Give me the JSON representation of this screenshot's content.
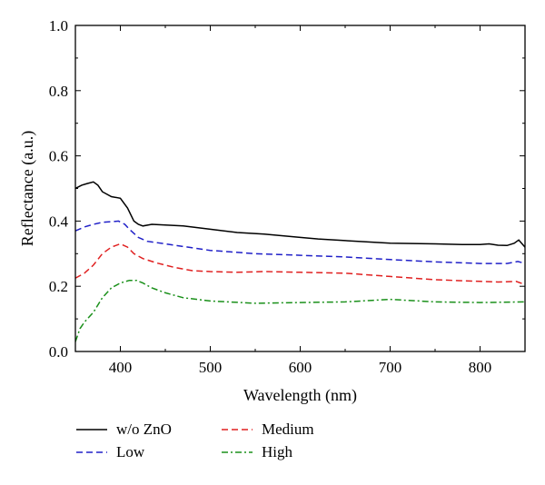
{
  "chart_data": {
    "type": "line",
    "xlabel": "Wavelength (nm)",
    "ylabel": "Reflectance (a.u.)",
    "xlim": [
      350,
      850
    ],
    "ylim": [
      0.0,
      1.0
    ],
    "xticks": [
      400,
      500,
      600,
      700,
      800
    ],
    "yticks": [
      0.0,
      0.2,
      0.4,
      0.6,
      0.8,
      1.0
    ],
    "ytick_labels": [
      "0.0",
      "0.2",
      "0.4",
      "0.6",
      "0.8",
      "1.0"
    ],
    "grid": false,
    "legend_position": "bottom",
    "series": [
      {
        "name": "w/o ZnO",
        "color": "#000000",
        "dash": "solid",
        "points": [
          [
            350,
            0.5
          ],
          [
            357,
            0.51
          ],
          [
            363,
            0.515
          ],
          [
            370,
            0.52
          ],
          [
            375,
            0.51
          ],
          [
            380,
            0.49
          ],
          [
            390,
            0.475
          ],
          [
            400,
            0.47
          ],
          [
            408,
            0.44
          ],
          [
            415,
            0.4
          ],
          [
            420,
            0.39
          ],
          [
            425,
            0.385
          ],
          [
            435,
            0.39
          ],
          [
            450,
            0.388
          ],
          [
            470,
            0.385
          ],
          [
            500,
            0.375
          ],
          [
            530,
            0.365
          ],
          [
            560,
            0.36
          ],
          [
            600,
            0.35
          ],
          [
            620,
            0.345
          ],
          [
            650,
            0.34
          ],
          [
            700,
            0.332
          ],
          [
            750,
            0.33
          ],
          [
            780,
            0.328
          ],
          [
            800,
            0.328
          ],
          [
            810,
            0.33
          ],
          [
            820,
            0.326
          ],
          [
            830,
            0.325
          ],
          [
            838,
            0.332
          ],
          [
            843,
            0.342
          ],
          [
            850,
            0.32
          ]
        ]
      },
      {
        "name": "Low",
        "color": "#2020c8",
        "dash": "dashed",
        "points": [
          [
            350,
            0.37
          ],
          [
            360,
            0.382
          ],
          [
            370,
            0.39
          ],
          [
            380,
            0.396
          ],
          [
            390,
            0.398
          ],
          [
            398,
            0.4
          ],
          [
            405,
            0.39
          ],
          [
            410,
            0.375
          ],
          [
            420,
            0.35
          ],
          [
            430,
            0.338
          ],
          [
            450,
            0.33
          ],
          [
            470,
            0.322
          ],
          [
            500,
            0.31
          ],
          [
            550,
            0.3
          ],
          [
            600,
            0.295
          ],
          [
            650,
            0.29
          ],
          [
            700,
            0.282
          ],
          [
            750,
            0.275
          ],
          [
            800,
            0.27
          ],
          [
            830,
            0.27
          ],
          [
            842,
            0.276
          ],
          [
            850,
            0.27
          ]
        ]
      },
      {
        "name": "Medium",
        "color": "#e02020",
        "dash": "dashed",
        "points": [
          [
            350,
            0.225
          ],
          [
            360,
            0.24
          ],
          [
            370,
            0.265
          ],
          [
            380,
            0.3
          ],
          [
            390,
            0.32
          ],
          [
            400,
            0.33
          ],
          [
            408,
            0.32
          ],
          [
            415,
            0.3
          ],
          [
            425,
            0.285
          ],
          [
            440,
            0.272
          ],
          [
            460,
            0.258
          ],
          [
            480,
            0.248
          ],
          [
            500,
            0.245
          ],
          [
            530,
            0.243
          ],
          [
            560,
            0.245
          ],
          [
            600,
            0.243
          ],
          [
            650,
            0.24
          ],
          [
            700,
            0.23
          ],
          [
            750,
            0.22
          ],
          [
            800,
            0.215
          ],
          [
            820,
            0.213
          ],
          [
            840,
            0.215
          ],
          [
            850,
            0.205
          ]
        ]
      },
      {
        "name": "High",
        "color": "#1a901a",
        "dash": "dashdot",
        "points": [
          [
            350,
            0.03
          ],
          [
            355,
            0.07
          ],
          [
            360,
            0.09
          ],
          [
            370,
            0.12
          ],
          [
            380,
            0.165
          ],
          [
            390,
            0.195
          ],
          [
            400,
            0.21
          ],
          [
            410,
            0.218
          ],
          [
            418,
            0.218
          ],
          [
            425,
            0.21
          ],
          [
            435,
            0.195
          ],
          [
            450,
            0.18
          ],
          [
            470,
            0.165
          ],
          [
            500,
            0.155
          ],
          [
            550,
            0.148
          ],
          [
            600,
            0.15
          ],
          [
            650,
            0.152
          ],
          [
            700,
            0.16
          ],
          [
            750,
            0.152
          ],
          [
            800,
            0.15
          ],
          [
            850,
            0.152
          ]
        ]
      }
    ]
  }
}
